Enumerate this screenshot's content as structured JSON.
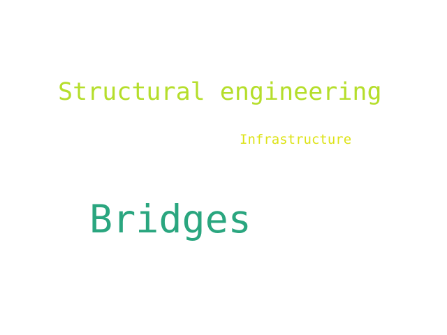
{
  "words": [
    {
      "text": "Structural engineering",
      "color": "#b5de2b"
    },
    {
      "text": "Infrastructure",
      "color": "#dde318"
    },
    {
      "text": "Bridges",
      "color": "#2aa67f"
    }
  ]
}
